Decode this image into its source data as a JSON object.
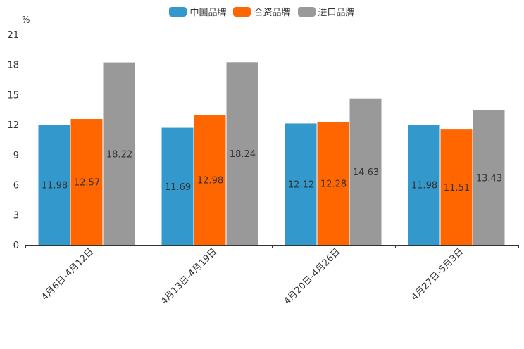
{
  "chart_data": {
    "type": "bar",
    "title": "",
    "unit": "%",
    "xlabel": "",
    "ylabel": "%",
    "categories": [
      "4月6日-4月12日",
      "4月13日-4月19日",
      "4月20日-4月26日",
      "4月27日-5月3日"
    ],
    "series": [
      {
        "name": "中国品牌",
        "color": "#3399cc",
        "values": [
          11.98,
          11.69,
          12.12,
          11.98
        ]
      },
      {
        "name": "合资品牌",
        "color": "#ff6600",
        "values": [
          12.57,
          12.98,
          12.28,
          11.51
        ]
      },
      {
        "name": "进口品牌",
        "color": "#999999",
        "values": [
          18.22,
          18.24,
          14.63,
          13.43
        ]
      }
    ],
    "ylim": [
      0,
      21
    ],
    "yticks": [
      0,
      3,
      6,
      9,
      12,
      15,
      18,
      21
    ],
    "legend_position": "top-center",
    "grid": false
  }
}
